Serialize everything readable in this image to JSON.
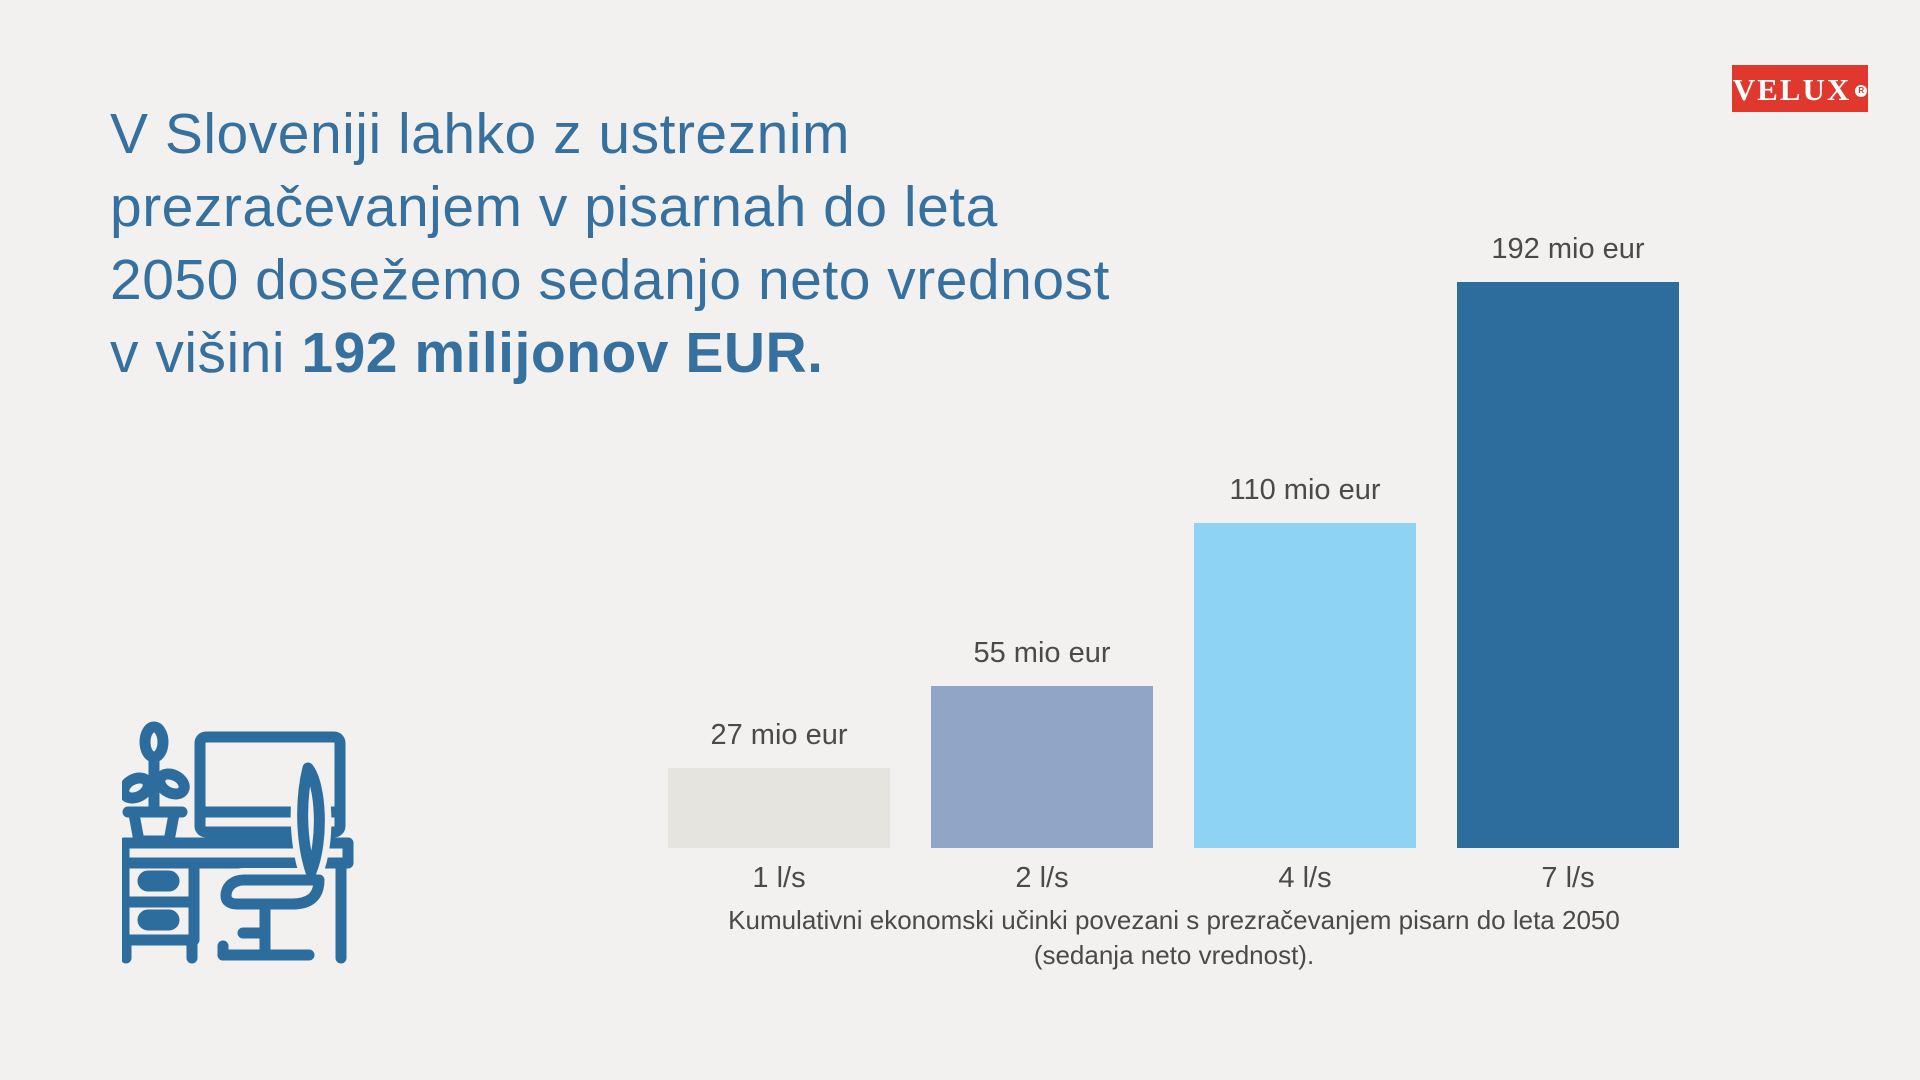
{
  "page": {
    "background_color": "#F2F1EF",
    "text_color": "#4B4A48"
  },
  "brand": {
    "logo_text": "VELUX",
    "registered_mark": "R",
    "logo_bg_color": "#E0382D",
    "logo_text_color": "#FFFFFF"
  },
  "headline": {
    "color": "#35709E",
    "lines": [
      "V Sloveniji lahko z ustreznim",
      "prezračevanjem v pisarnah do leta",
      "2050 dosežemo sedanjo neto vrednost"
    ],
    "line4_regular": "v višini ",
    "line4_bold": "192 milijonov EUR."
  },
  "chart_data": {
    "type": "bar",
    "title": "",
    "categories": [
      "1 l/s",
      "2 l/s",
      "4 l/s",
      "7 l/s"
    ],
    "values": [
      27,
      55,
      110,
      192
    ],
    "value_labels": [
      "27 mio eur",
      "55 mio eur",
      "110 mio eur",
      "192 mio eur"
    ],
    "unit": "mio eur",
    "bar_colors": [
      "#E5E4DF",
      "#91A5C7",
      "#8ED3F3",
      "#2D6D9E"
    ],
    "xlabel": "",
    "ylabel": "",
    "ylim": [
      0,
      200
    ],
    "grid": false,
    "legend": "none",
    "label_color": "#4B4A48",
    "caption_line1": "Kumulativni ekonomski učinki povezani s prezračevanjem pisarn do leta 2050",
    "caption_line2": "(sedanja neto vrednost)."
  },
  "icon": {
    "name": "office-desk-workspace-icon",
    "color": "#2D6D9E"
  }
}
